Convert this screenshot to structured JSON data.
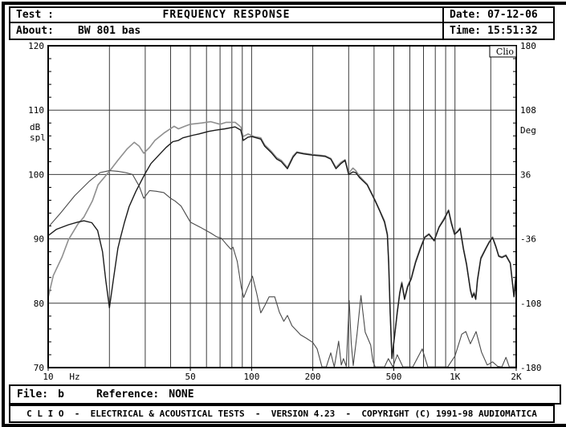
{
  "header": {
    "test_label": "Test :",
    "title": "FREQUENCY RESPONSE",
    "about_label": "About:",
    "about_value": "BW 801 bas",
    "date_label": "Date:",
    "date_value": "07-12-06",
    "time_label": "Time:",
    "time_value": "15:51:32"
  },
  "file_bar": {
    "file_label": "File:",
    "file_value": "b",
    "reference_label": "Reference:",
    "reference_value": "NONE"
  },
  "footer": {
    "text": "C L I O  -  ELECTRICAL & ACOUSTICAL TESTS  -  VERSION 4.23  -  COPYRIGHT (C) 1991-98 AUDIOMATICA"
  },
  "chart_data": {
    "type": "line",
    "title": "FREQUENCY RESPONSE",
    "watermark": "Clio",
    "grid_color": "#3c3c3c",
    "x_axis": {
      "scale": "log",
      "min": 10,
      "max": 2000,
      "unit_label": "Hz",
      "tick_labels": [
        [
          10,
          "10"
        ],
        [
          50,
          "50"
        ],
        [
          100,
          "100"
        ],
        [
          200,
          "200"
        ],
        [
          500,
          "500"
        ],
        [
          1000,
          "1K"
        ],
        [
          2000,
          "2K"
        ]
      ],
      "gridlines": [
        20,
        30,
        40,
        50,
        60,
        70,
        80,
        90,
        100,
        200,
        300,
        400,
        500,
        600,
        700,
        800,
        900,
        1000,
        1500
      ]
    },
    "y_left": {
      "label_lines": [
        "dB",
        "spl"
      ],
      "min": 70,
      "max": 120,
      "ticks": [
        70,
        80,
        90,
        100,
        110,
        120
      ],
      "gridlines": [
        80,
        90,
        100,
        110
      ]
    },
    "y_right": {
      "label": "Deg",
      "min": -180,
      "max": 180,
      "ticks": [
        {
          "pos": 120,
          "label": "180"
        },
        {
          "pos": 110,
          "label": "108"
        },
        {
          "pos": 100,
          "label": "36"
        },
        {
          "pos": 90,
          "label": "-36"
        },
        {
          "pos": 80,
          "label": "-108"
        },
        {
          "pos": 70,
          "label": "-180"
        }
      ]
    },
    "series": [
      {
        "name": "response-upper-gray",
        "color": "#8f8f8f",
        "width": 1.6,
        "points": [
          [
            10,
            80.9
          ],
          [
            10.6,
            84.3
          ],
          [
            11.7,
            87.2
          ],
          [
            12.6,
            89.9
          ],
          [
            14,
            92.3
          ],
          [
            15,
            93.4
          ],
          [
            16.5,
            95.9
          ],
          [
            17.6,
            98.4
          ],
          [
            20,
            100.5
          ],
          [
            22,
            102.2
          ],
          [
            24.5,
            104
          ],
          [
            26.5,
            105
          ],
          [
            28,
            104.4
          ],
          [
            29.5,
            103.3
          ],
          [
            31.5,
            104.2
          ],
          [
            33.5,
            105.3
          ],
          [
            37.3,
            106.5
          ],
          [
            41.6,
            107.5
          ],
          [
            43.7,
            107.1
          ],
          [
            47,
            107.5
          ],
          [
            50,
            107.8
          ],
          [
            57,
            108
          ],
          [
            63,
            108.2
          ],
          [
            70,
            107.8
          ],
          [
            75,
            108.1
          ],
          [
            83,
            108.1
          ],
          [
            88.5,
            107.4
          ],
          [
            91,
            105.9
          ],
          [
            96,
            106.3
          ],
          [
            103,
            105.9
          ],
          [
            111,
            105.7
          ],
          [
            116,
            104.6
          ],
          [
            125,
            103.6
          ],
          [
            133,
            102.6
          ],
          [
            140,
            102.2
          ],
          [
            150,
            101.1
          ],
          [
            160,
            102.9
          ],
          [
            167,
            103.5
          ],
          [
            180,
            103.3
          ],
          [
            200,
            103.1
          ],
          [
            215,
            103
          ],
          [
            230,
            102.9
          ],
          [
            245,
            102.5
          ],
          [
            260,
            101.1
          ],
          [
            275,
            101.9
          ],
          [
            288,
            102.3
          ],
          [
            300,
            100.2
          ],
          [
            315,
            101
          ],
          [
            325,
            100.6
          ],
          [
            340,
            99.7
          ],
          [
            370,
            98.5
          ],
          [
            405,
            96
          ],
          [
            427,
            94.4
          ],
          [
            450,
            92.8
          ],
          [
            465,
            90.8
          ],
          [
            472,
            86.5
          ],
          [
            480,
            78.7
          ],
          [
            490,
            71.6
          ],
          [
            505,
            75.2
          ],
          [
            520,
            78.7
          ],
          [
            535,
            81.7
          ],
          [
            548,
            83.3
          ],
          [
            565,
            80.8
          ],
          [
            585,
            82.7
          ],
          [
            610,
            84
          ],
          [
            640,
            86.5
          ],
          [
            675,
            88.6
          ],
          [
            710,
            90.3
          ],
          [
            745,
            90.8
          ],
          [
            790,
            89.8
          ],
          [
            835,
            91.9
          ],
          [
            880,
            93.1
          ],
          [
            930,
            94.5
          ],
          [
            960,
            92.6
          ],
          [
            995,
            90.8
          ],
          [
            1030,
            91.2
          ],
          [
            1060,
            91.7
          ],
          [
            1100,
            88.6
          ],
          [
            1140,
            86.2
          ],
          [
            1190,
            82.2
          ],
          [
            1215,
            81.1
          ],
          [
            1240,
            81.7
          ],
          [
            1265,
            80.8
          ],
          [
            1290,
            83.7
          ],
          [
            1340,
            87.1
          ],
          [
            1420,
            88.6
          ],
          [
            1470,
            89.5
          ],
          [
            1530,
            90.3
          ],
          [
            1590,
            88.8
          ],
          [
            1640,
            87.4
          ],
          [
            1700,
            87.2
          ],
          [
            1780,
            87.5
          ],
          [
            1870,
            86.3
          ],
          [
            1950,
            81.1
          ],
          [
            2000,
            84.8
          ]
        ]
      },
      {
        "name": "response-lower-black",
        "color": "#1b1b1b",
        "width": 1.4,
        "points": [
          [
            10,
            90.5
          ],
          [
            11,
            91.5
          ],
          [
            12.6,
            92.2
          ],
          [
            14,
            92.6
          ],
          [
            15,
            92.8
          ],
          [
            16.4,
            92.5
          ],
          [
            17.5,
            91.3
          ],
          [
            18.5,
            88
          ],
          [
            19.2,
            83.5
          ],
          [
            20,
            79.3
          ],
          [
            21,
            84
          ],
          [
            22,
            88.5
          ],
          [
            22.6,
            90
          ],
          [
            23.7,
            92.5
          ],
          [
            25,
            95
          ],
          [
            27,
            97.4
          ],
          [
            29.8,
            100
          ],
          [
            32,
            101.7
          ],
          [
            35,
            103
          ],
          [
            38,
            104.2
          ],
          [
            41,
            105.1
          ],
          [
            43.7,
            105.3
          ],
          [
            46,
            105.7
          ],
          [
            51.5,
            106.1
          ],
          [
            55,
            106.3
          ],
          [
            61.5,
            106.7
          ],
          [
            67,
            106.9
          ],
          [
            74,
            107.1
          ],
          [
            83,
            107.4
          ],
          [
            88.5,
            106.9
          ],
          [
            91,
            105.3
          ],
          [
            96,
            105.8
          ],
          [
            100,
            105.9
          ],
          [
            111,
            105.5
          ],
          [
            116,
            104.4
          ],
          [
            125,
            103.4
          ],
          [
            133,
            102.4
          ],
          [
            140,
            102
          ],
          [
            150,
            100.9
          ],
          [
            160,
            102.7
          ],
          [
            167,
            103.4
          ],
          [
            180,
            103.2
          ],
          [
            200,
            103
          ],
          [
            215,
            102.9
          ],
          [
            230,
            102.8
          ],
          [
            245,
            102.4
          ],
          [
            260,
            100.9
          ],
          [
            275,
            101.7
          ],
          [
            288,
            102.2
          ],
          [
            300,
            100
          ],
          [
            315,
            100.4
          ],
          [
            325,
            100.3
          ],
          [
            340,
            99.5
          ],
          [
            370,
            98.4
          ],
          [
            405,
            95.9
          ],
          [
            427,
            94.3
          ],
          [
            450,
            92.6
          ],
          [
            465,
            90.6
          ],
          [
            472,
            86.3
          ],
          [
            480,
            78.5
          ],
          [
            490,
            71.4
          ],
          [
            505,
            75
          ],
          [
            520,
            78.5
          ],
          [
            535,
            81.5
          ],
          [
            548,
            83.1
          ],
          [
            565,
            80.6
          ],
          [
            585,
            82.5
          ],
          [
            610,
            83.8
          ],
          [
            640,
            86.3
          ],
          [
            675,
            88.4
          ],
          [
            710,
            90.2
          ],
          [
            745,
            90.7
          ],
          [
            790,
            89.7
          ],
          [
            835,
            91.8
          ],
          [
            880,
            92.9
          ],
          [
            930,
            94.4
          ],
          [
            960,
            92.4
          ],
          [
            995,
            90.7
          ],
          [
            1030,
            91.1
          ],
          [
            1060,
            91.6
          ],
          [
            1100,
            88.4
          ],
          [
            1140,
            86
          ],
          [
            1190,
            82
          ],
          [
            1215,
            80.9
          ],
          [
            1240,
            81.5
          ],
          [
            1265,
            80.6
          ],
          [
            1290,
            83.5
          ],
          [
            1340,
            86.9
          ],
          [
            1420,
            88.5
          ],
          [
            1470,
            89.4
          ],
          [
            1530,
            90.2
          ],
          [
            1590,
            88.7
          ],
          [
            1640,
            87.3
          ],
          [
            1700,
            87.1
          ],
          [
            1780,
            87.4
          ],
          [
            1870,
            86.2
          ],
          [
            1950,
            81
          ],
          [
            2000,
            84.7
          ]
        ]
      },
      {
        "name": "phase-curve",
        "color": "#4a4a4a",
        "width": 1.1,
        "points": [
          [
            10,
            91.8
          ],
          [
            11.5,
            94
          ],
          [
            13.5,
            96.7
          ],
          [
            16,
            99
          ],
          [
            18,
            100.3
          ],
          [
            20,
            100.6
          ],
          [
            22,
            100.5
          ],
          [
            24,
            100.3
          ],
          [
            26,
            100
          ],
          [
            28,
            98.2
          ],
          [
            29.5,
            96.3
          ],
          [
            31.5,
            97.5
          ],
          [
            34,
            97.4
          ],
          [
            37,
            97.2
          ],
          [
            40,
            96.3
          ],
          [
            42,
            95.9
          ],
          [
            45,
            95.1
          ],
          [
            50,
            92.6
          ],
          [
            56,
            91.8
          ],
          [
            63,
            90.9
          ],
          [
            67.5,
            90.3
          ],
          [
            71,
            90.1
          ],
          [
            75.5,
            89.1
          ],
          [
            79,
            88.4
          ],
          [
            81,
            88.7
          ],
          [
            85,
            86.5
          ],
          [
            89,
            82.5
          ],
          [
            91.5,
            80.9
          ],
          [
            95,
            82.2
          ],
          [
            101,
            84.2
          ],
          [
            106,
            81.5
          ],
          [
            111,
            78.5
          ],
          [
            116,
            79.6
          ],
          [
            122,
            81
          ],
          [
            130,
            81
          ],
          [
            137,
            78.6
          ],
          [
            144,
            77.2
          ],
          [
            150,
            78.1
          ],
          [
            158,
            76.5
          ],
          [
            166,
            75.8
          ],
          [
            174,
            75.1
          ],
          [
            185,
            74.6
          ],
          [
            200,
            73.9
          ],
          [
            210,
            72.9
          ],
          [
            222,
            70.1
          ],
          [
            233,
            70.1
          ],
          [
            245,
            72.3
          ],
          [
            255,
            70.1
          ],
          [
            268,
            74.1
          ],
          [
            276,
            70.4
          ],
          [
            283,
            71.4
          ],
          [
            292,
            70.2
          ],
          [
            302,
            80.4
          ],
          [
            309,
            73.8
          ],
          [
            316,
            70.3
          ],
          [
            330,
            75.2
          ],
          [
            345,
            81.2
          ],
          [
            362,
            75.5
          ],
          [
            385,
            73.5
          ],
          [
            395,
            71
          ],
          [
            405,
            70.1
          ],
          [
            450,
            70.1
          ],
          [
            470,
            71.4
          ],
          [
            495,
            70.1
          ],
          [
            520,
            72
          ],
          [
            555,
            70.1
          ],
          [
            620,
            70.1
          ],
          [
            690,
            72.9
          ],
          [
            735,
            70.1
          ],
          [
            820,
            70.1
          ],
          [
            920,
            70.1
          ],
          [
            1000,
            71.8
          ],
          [
            1080,
            75.2
          ],
          [
            1130,
            75.6
          ],
          [
            1190,
            73.7
          ],
          [
            1270,
            75.6
          ],
          [
            1350,
            72.4
          ],
          [
            1440,
            70.4
          ],
          [
            1530,
            70.9
          ],
          [
            1620,
            70.2
          ],
          [
            1700,
            70.1
          ],
          [
            1780,
            71.6
          ],
          [
            1850,
            70.1
          ],
          [
            2000,
            70.1
          ]
        ]
      }
    ]
  }
}
